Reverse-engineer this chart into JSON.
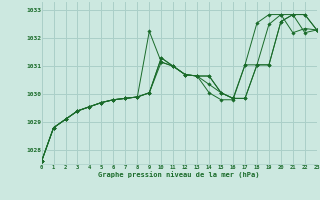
{
  "title": "Graphe pression niveau de la mer (hPa)",
  "bg_color": "#cce8e0",
  "grid_color": "#aacfc8",
  "line_color": "#1a6b2a",
  "marker_color": "#1a6b2a",
  "xlim": [
    0,
    23
  ],
  "ylim": [
    1027.5,
    1033.3
  ],
  "xticks": [
    0,
    1,
    2,
    3,
    4,
    5,
    6,
    7,
    8,
    9,
    10,
    11,
    12,
    13,
    14,
    15,
    16,
    17,
    18,
    19,
    20,
    21,
    22,
    23
  ],
  "yticks": [
    1028,
    1029,
    1030,
    1031,
    1032,
    1033
  ],
  "series1": {
    "x": [
      0,
      1,
      2,
      3,
      4,
      5,
      6,
      7,
      8,
      9,
      10,
      11,
      12,
      13,
      14,
      15,
      16,
      17,
      18,
      19,
      20,
      21,
      22,
      23
    ],
    "y": [
      1027.6,
      1028.8,
      1029.1,
      1029.4,
      1029.55,
      1029.7,
      1029.8,
      1029.85,
      1029.9,
      1032.25,
      1031.15,
      1031.0,
      1030.7,
      1030.65,
      1030.05,
      1029.8,
      1029.8,
      1031.05,
      1032.55,
      1032.85,
      1032.85,
      1032.2,
      1032.35,
      1032.3
    ]
  },
  "series2": {
    "x": [
      0,
      1,
      2,
      3,
      4,
      5,
      6,
      7,
      8,
      9,
      10,
      11,
      12,
      13,
      14,
      15,
      16,
      17,
      18,
      19,
      20,
      21,
      22,
      23
    ],
    "y": [
      1027.6,
      1028.8,
      1029.1,
      1029.4,
      1029.55,
      1029.7,
      1029.8,
      1029.85,
      1029.9,
      1030.05,
      1031.3,
      1031.0,
      1030.7,
      1030.65,
      1030.65,
      1030.05,
      1029.85,
      1029.85,
      1031.05,
      1031.05,
      1032.6,
      1032.85,
      1032.85,
      1032.3
    ]
  },
  "series3": {
    "x": [
      0,
      1,
      2,
      3,
      4,
      5,
      6,
      7,
      8,
      9,
      10,
      11,
      12,
      13,
      14,
      15,
      16,
      17,
      18,
      19,
      20,
      21,
      22,
      23
    ],
    "y": [
      1027.6,
      1028.8,
      1029.1,
      1029.4,
      1029.55,
      1029.7,
      1029.8,
      1029.85,
      1029.9,
      1030.05,
      1031.3,
      1031.0,
      1030.7,
      1030.65,
      1030.65,
      1030.05,
      1029.85,
      1029.85,
      1031.05,
      1031.05,
      1032.6,
      1032.85,
      1032.85,
      1032.3
    ]
  },
  "series4": {
    "x": [
      0,
      1,
      2,
      3,
      4,
      5,
      6,
      7,
      8,
      9,
      10,
      11,
      12,
      13,
      14,
      15,
      16,
      17,
      18,
      19,
      20,
      21,
      22,
      23
    ],
    "y": [
      1027.6,
      1028.8,
      1029.1,
      1029.4,
      1029.55,
      1029.7,
      1029.8,
      1029.85,
      1029.9,
      1030.05,
      1031.15,
      1031.0,
      1030.7,
      1030.65,
      1030.35,
      1030.05,
      1029.85,
      1031.05,
      1031.05,
      1032.5,
      1032.85,
      1032.85,
      1032.2,
      1032.3
    ]
  }
}
